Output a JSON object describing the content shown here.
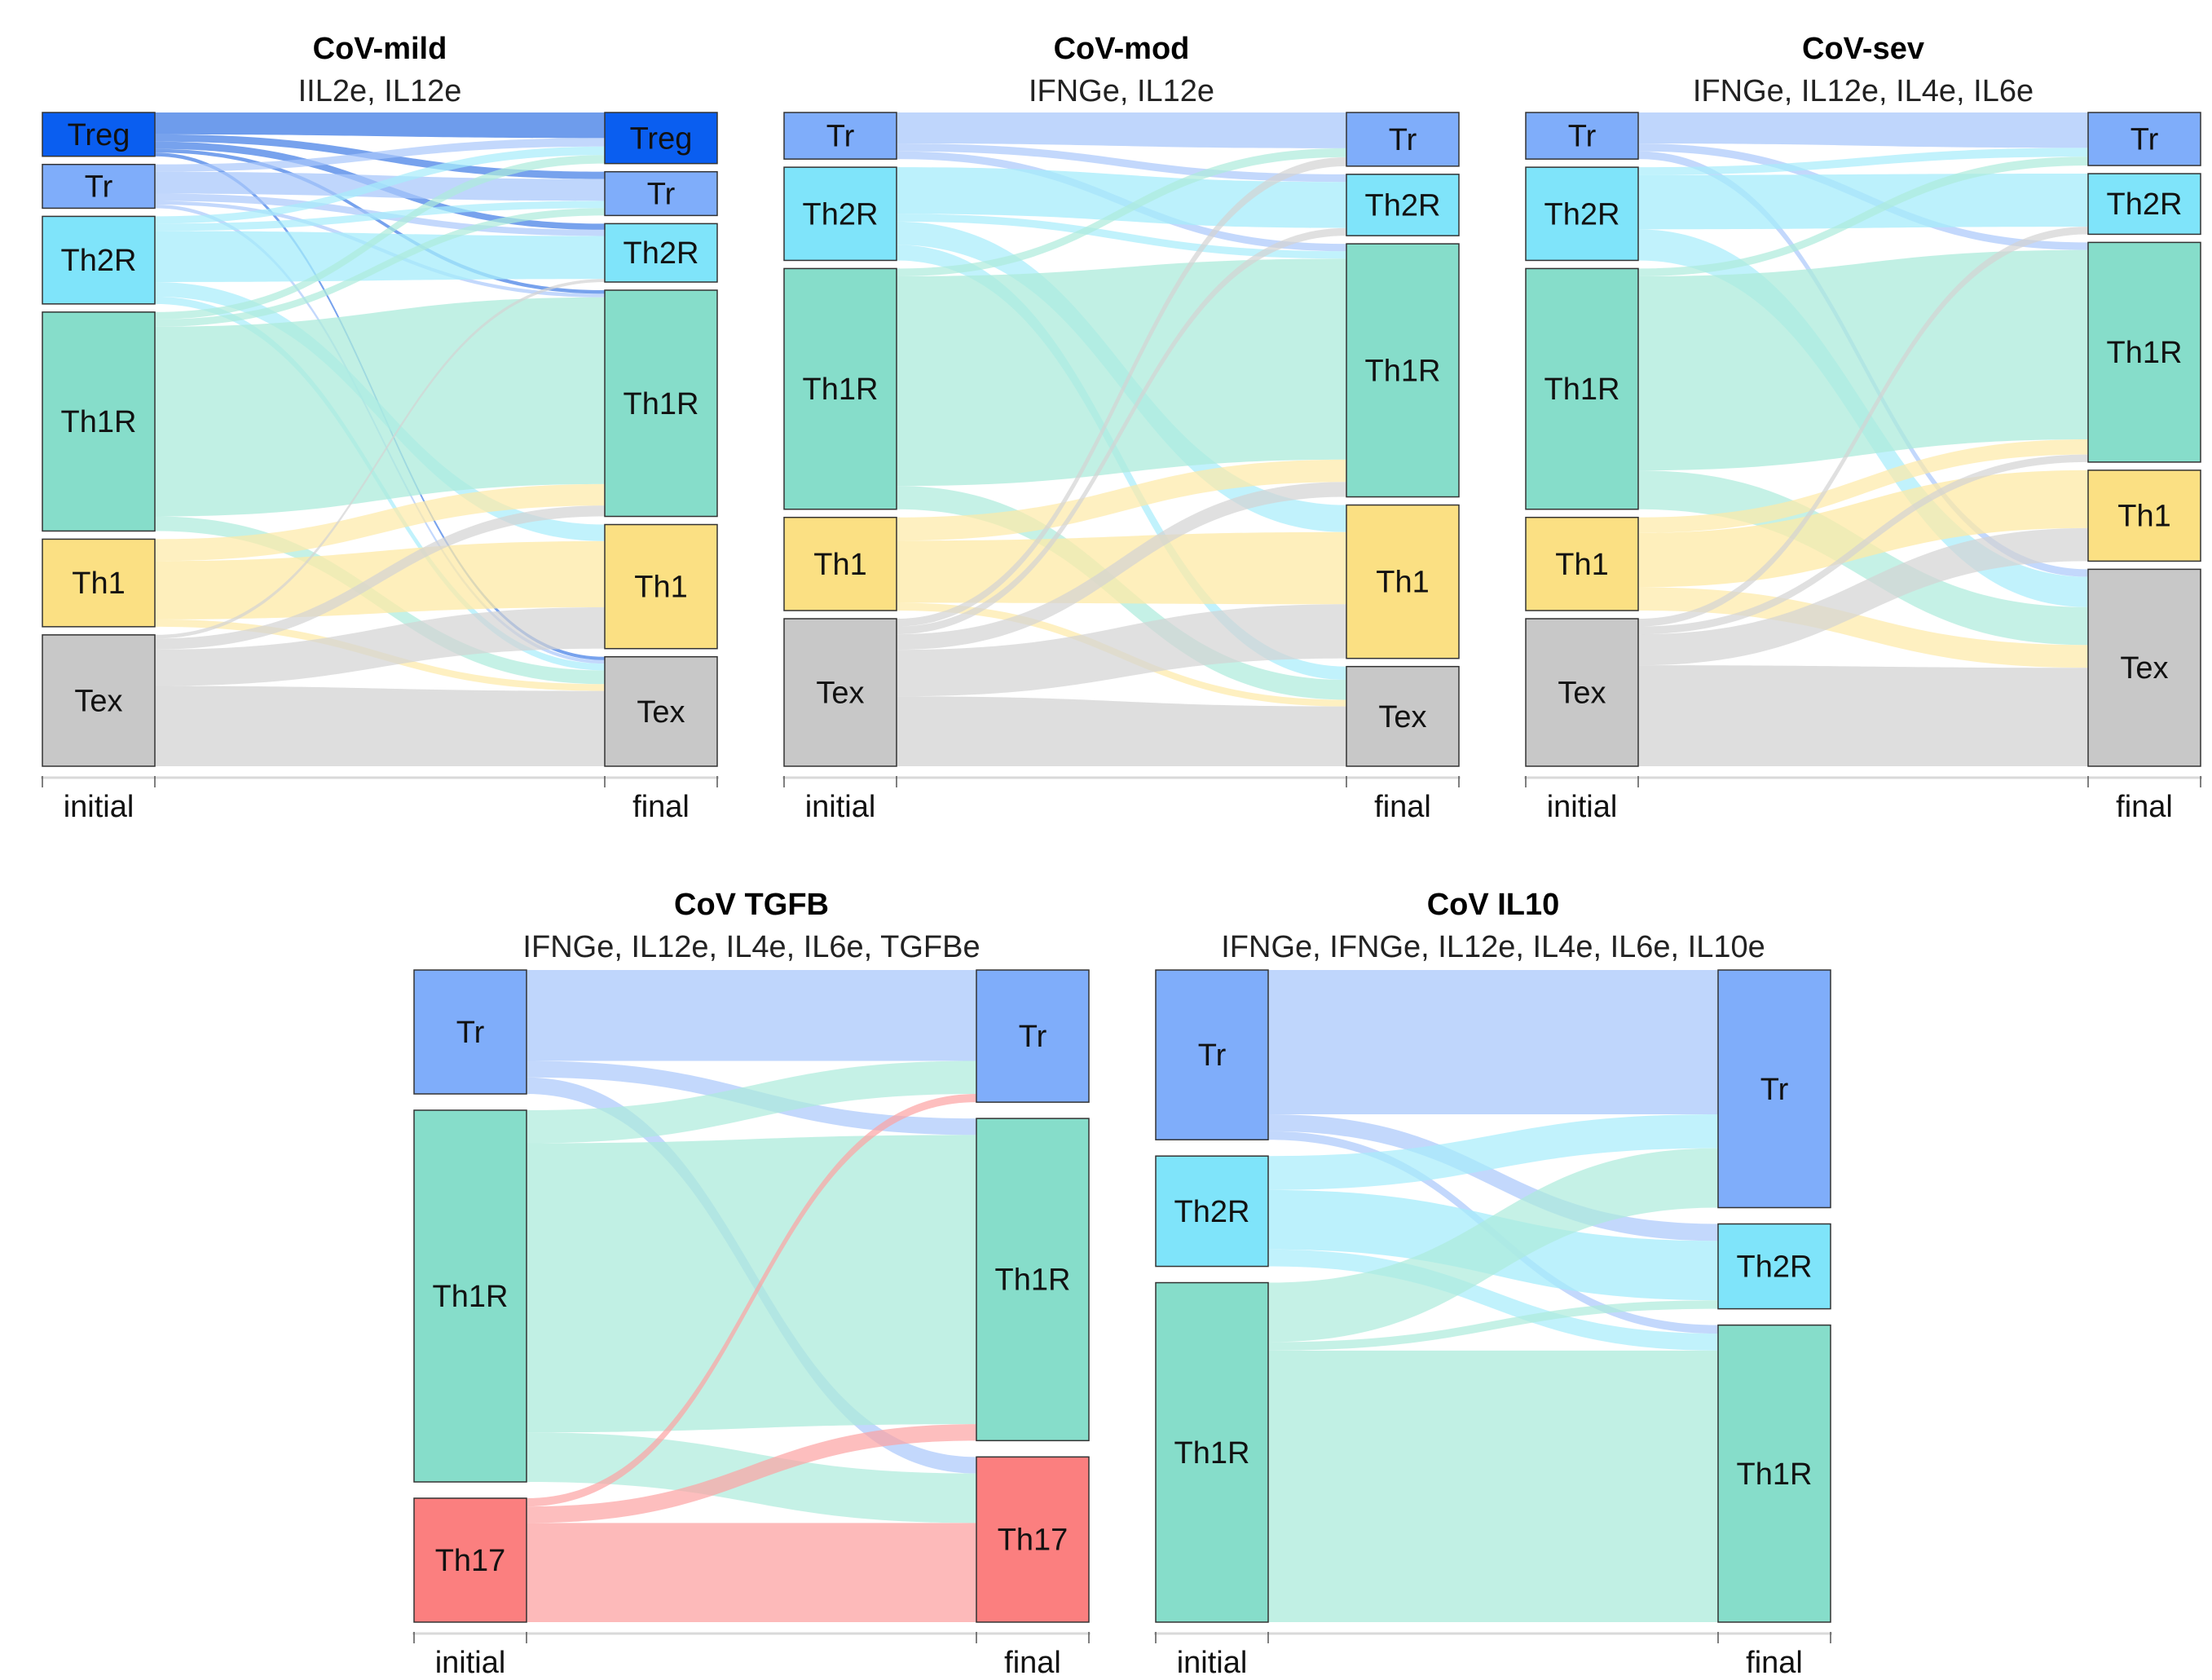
{
  "chart_data": [
    {
      "type": "sankey",
      "title": "CoV-mild",
      "subtitle": "IIL2e, IL12e",
      "axis_labels": [
        "initial",
        "final"
      ],
      "initial": [
        {
          "name": "Treg",
          "value": 6
        },
        {
          "name": "Tr",
          "value": 6
        },
        {
          "name": "Th2R",
          "value": 12
        },
        {
          "name": "Th1R",
          "value": 30
        },
        {
          "name": "Th1",
          "value": 12
        },
        {
          "name": "Tex",
          "value": 18
        }
      ],
      "final": [
        {
          "name": "Treg",
          "value": 7
        },
        {
          "name": "Tr",
          "value": 6
        },
        {
          "name": "Th2R",
          "value": 8
        },
        {
          "name": "Th1R",
          "value": 31
        },
        {
          "name": "Th1",
          "value": 17
        },
        {
          "name": "Tex",
          "value": 15
        }
      ],
      "flows": [
        {
          "from": "Treg",
          "to": "Treg",
          "value": 3
        },
        {
          "from": "Treg",
          "to": "Tr",
          "value": 1
        },
        {
          "from": "Treg",
          "to": "Th2R",
          "value": 1
        },
        {
          "from": "Treg",
          "to": "Th1R",
          "value": 0.5
        },
        {
          "from": "Treg",
          "to": "Tex",
          "value": 0.5
        },
        {
          "from": "Tr",
          "to": "Treg",
          "value": 1
        },
        {
          "from": "Tr",
          "to": "Tr",
          "value": 3
        },
        {
          "from": "Tr",
          "to": "Th2R",
          "value": 1
        },
        {
          "from": "Tr",
          "to": "Th1R",
          "value": 0.5
        },
        {
          "from": "Tr",
          "to": "Tex",
          "value": 0.5
        },
        {
          "from": "Th2R",
          "to": "Treg",
          "value": 1
        },
        {
          "from": "Th2R",
          "to": "Tr",
          "value": 1
        },
        {
          "from": "Th2R",
          "to": "Th2R",
          "value": 7
        },
        {
          "from": "Th2R",
          "to": "Th1",
          "value": 2
        },
        {
          "from": "Th2R",
          "to": "Tex",
          "value": 1
        },
        {
          "from": "Th1R",
          "to": "Treg",
          "value": 1
        },
        {
          "from": "Th1R",
          "to": "Tr",
          "value": 1
        },
        {
          "from": "Th1R",
          "to": "Th1R",
          "value": 26
        },
        {
          "from": "Th1R",
          "to": "Tex",
          "value": 2
        },
        {
          "from": "Th1",
          "to": "Th1R",
          "value": 3
        },
        {
          "from": "Th1",
          "to": "Th1",
          "value": 8
        },
        {
          "from": "Th1",
          "to": "Tex",
          "value": 1
        },
        {
          "from": "Tex",
          "to": "Th2R",
          "value": 0.5
        },
        {
          "from": "Tex",
          "to": "Th1R",
          "value": 1.5
        },
        {
          "from": "Tex",
          "to": "Th1",
          "value": 5
        },
        {
          "from": "Tex",
          "to": "Tex",
          "value": 11
        }
      ]
    },
    {
      "type": "sankey",
      "title": "CoV-mod",
      "subtitle": "IFNGe, IL12e",
      "axis_labels": [
        "initial",
        "final"
      ],
      "initial": [
        {
          "name": "Tr",
          "value": 6
        },
        {
          "name": "Th2R",
          "value": 12
        },
        {
          "name": "Th1R",
          "value": 31
        },
        {
          "name": "Th1",
          "value": 12
        },
        {
          "name": "Tex",
          "value": 19
        }
      ],
      "final": [
        {
          "name": "Tr",
          "value": 7
        },
        {
          "name": "Th2R",
          "value": 8
        },
        {
          "name": "Th1R",
          "value": 33
        },
        {
          "name": "Th1",
          "value": 20
        },
        {
          "name": "Tex",
          "value": 13
        }
      ],
      "flows": [
        {
          "from": "Tr",
          "to": "Tr",
          "value": 4
        },
        {
          "from": "Tr",
          "to": "Th2R",
          "value": 1
        },
        {
          "from": "Tr",
          "to": "Th1R",
          "value": 1
        },
        {
          "from": "Th2R",
          "to": "Th2R",
          "value": 6
        },
        {
          "from": "Th2R",
          "to": "Th1R",
          "value": 1
        },
        {
          "from": "Th2R",
          "to": "Th1",
          "value": 3
        },
        {
          "from": "Th2R",
          "to": "Tex",
          "value": 2
        },
        {
          "from": "Th1R",
          "to": "Tr",
          "value": 1
        },
        {
          "from": "Th1R",
          "to": "Th1R",
          "value": 27
        },
        {
          "from": "Th1R",
          "to": "Tex",
          "value": 3
        },
        {
          "from": "Th1",
          "to": "Th1R",
          "value": 3
        },
        {
          "from": "Th1",
          "to": "Th1",
          "value": 8
        },
        {
          "from": "Th1",
          "to": "Tex",
          "value": 1
        },
        {
          "from": "Tex",
          "to": "Tr",
          "value": 1
        },
        {
          "from": "Tex",
          "to": "Th2R",
          "value": 1
        },
        {
          "from": "Tex",
          "to": "Th1R",
          "value": 2
        },
        {
          "from": "Tex",
          "to": "Th1",
          "value": 6
        },
        {
          "from": "Tex",
          "to": "Tex",
          "value": 9
        }
      ]
    },
    {
      "type": "sankey",
      "title": "CoV-sev",
      "subtitle": "IFNGe, IL12e, IL4e, IL6e",
      "axis_labels": [
        "initial",
        "final"
      ],
      "initial": [
        {
          "name": "Tr",
          "value": 6
        },
        {
          "name": "Th2R",
          "value": 12
        },
        {
          "name": "Th1R",
          "value": 31
        },
        {
          "name": "Th1",
          "value": 12
        },
        {
          "name": "Tex",
          "value": 19
        }
      ],
      "final": [
        {
          "name": "Tr",
          "value": 7
        },
        {
          "name": "Th2R",
          "value": 8
        },
        {
          "name": "Th1R",
          "value": 29
        },
        {
          "name": "Th1",
          "value": 12
        },
        {
          "name": "Tex",
          "value": 26
        }
      ],
      "flows": [
        {
          "from": "Tr",
          "to": "Tr",
          "value": 4
        },
        {
          "from": "Tr",
          "to": "Th1R",
          "value": 1
        },
        {
          "from": "Tr",
          "to": "Tex",
          "value": 1
        },
        {
          "from": "Th2R",
          "to": "Tr",
          "value": 1
        },
        {
          "from": "Th2R",
          "to": "Th2R",
          "value": 7
        },
        {
          "from": "Th2R",
          "to": "Tex",
          "value": 4
        },
        {
          "from": "Th1R",
          "to": "Tr",
          "value": 1
        },
        {
          "from": "Th1R",
          "to": "Th1R",
          "value": 25
        },
        {
          "from": "Th1R",
          "to": "Tex",
          "value": 5
        },
        {
          "from": "Th1",
          "to": "Th1R",
          "value": 2
        },
        {
          "from": "Th1",
          "to": "Th1",
          "value": 7
        },
        {
          "from": "Th1",
          "to": "Tex",
          "value": 3
        },
        {
          "from": "Tex",
          "to": "Th2R",
          "value": 1
        },
        {
          "from": "Tex",
          "to": "Th1R",
          "value": 1
        },
        {
          "from": "Tex",
          "to": "Th1",
          "value": 4
        },
        {
          "from": "Tex",
          "to": "Tex",
          "value": 13
        }
      ]
    },
    {
      "type": "sankey",
      "title": "CoV TGFB",
      "subtitle": "IFNGe, IL12e, IL4e, IL6e, TGFBe",
      "axis_labels": [
        "initial",
        "final"
      ],
      "initial": [
        {
          "name": "Tr",
          "value": 15
        },
        {
          "name": "Th1R",
          "value": 45
        },
        {
          "name": "Th17",
          "value": 15
        }
      ],
      "final": [
        {
          "name": "Tr",
          "value": 16
        },
        {
          "name": "Th1R",
          "value": 39
        },
        {
          "name": "Th17",
          "value": 20
        }
      ],
      "flows": [
        {
          "from": "Tr",
          "to": "Tr",
          "value": 11
        },
        {
          "from": "Tr",
          "to": "Th1R",
          "value": 2
        },
        {
          "from": "Tr",
          "to": "Th17",
          "value": 2
        },
        {
          "from": "Th1R",
          "to": "Tr",
          "value": 4
        },
        {
          "from": "Th1R",
          "to": "Th1R",
          "value": 35
        },
        {
          "from": "Th1R",
          "to": "Th17",
          "value": 6
        },
        {
          "from": "Th17",
          "to": "Tr",
          "value": 1
        },
        {
          "from": "Th17",
          "to": "Th1R",
          "value": 2
        },
        {
          "from": "Th17",
          "to": "Th17",
          "value": 12
        }
      ]
    },
    {
      "type": "sankey",
      "title": "CoV IL10",
      "subtitle": "IFNGe, IFNGe, IL12e, IL4e, IL6e, IL10e",
      "axis_labels": [
        "initial",
        "final"
      ],
      "initial": [
        {
          "name": "Tr",
          "value": 20
        },
        {
          "name": "Th2R",
          "value": 13
        },
        {
          "name": "Th1R",
          "value": 40
        }
      ],
      "final": [
        {
          "name": "Tr",
          "value": 28
        },
        {
          "name": "Th2R",
          "value": 10
        },
        {
          "name": "Th1R",
          "value": 35
        }
      ],
      "flows": [
        {
          "from": "Tr",
          "to": "Tr",
          "value": 17
        },
        {
          "from": "Tr",
          "to": "Th2R",
          "value": 2
        },
        {
          "from": "Tr",
          "to": "Th1R",
          "value": 1
        },
        {
          "from": "Th2R",
          "to": "Tr",
          "value": 4
        },
        {
          "from": "Th2R",
          "to": "Th2R",
          "value": 7
        },
        {
          "from": "Th2R",
          "to": "Th1R",
          "value": 2
        },
        {
          "from": "Th1R",
          "to": "Tr",
          "value": 7
        },
        {
          "from": "Th1R",
          "to": "Th2R",
          "value": 1
        },
        {
          "from": "Th1R",
          "to": "Th1R",
          "value": 32
        }
      ]
    }
  ],
  "node_colors": {
    "Treg": "#0a5ef0",
    "Tr": "#7fadfa",
    "Th2R": "#7fe4fa",
    "Th1R": "#86ddca",
    "Th1": "#fbe083",
    "Tex": "#c8c8c8",
    "Th17": "#fb7f7f"
  },
  "flow_colors": {
    "Treg": "#3d7be6",
    "Tr": "#a9c8fb",
    "Th2R": "#a6ecfb",
    "Th1R": "#acebdb",
    "Th1": "#fdeaa6",
    "Tex": "#d3d3d3",
    "Th17": "#fca3a3"
  }
}
